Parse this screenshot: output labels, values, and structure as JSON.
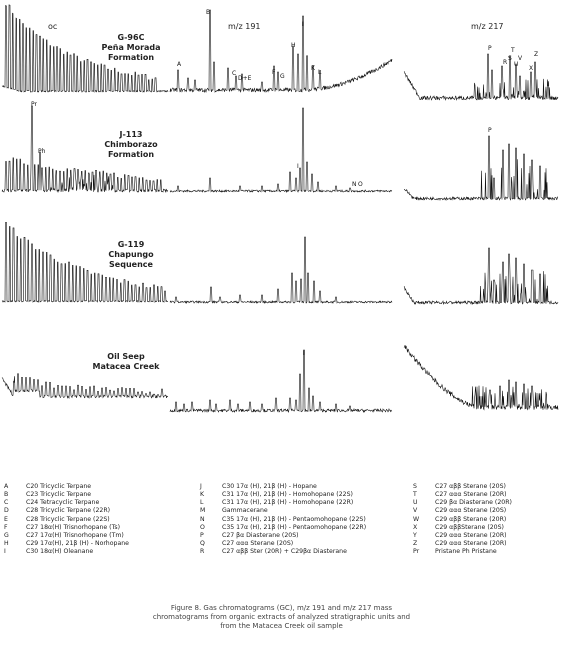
{
  "column_titles": {
    "oc": "oc",
    "m191": "m/z 191",
    "m217": "m/z 217"
  },
  "samples": [
    {
      "id": "G-96C",
      "lines": [
        "G-96C",
        "Peña Morada",
        "Formation"
      ]
    },
    {
      "id": "J-113",
      "lines": [
        "J-113",
        "Chimborazo",
        "Formation"
      ]
    },
    {
      "id": "G-119",
      "lines": [
        "G-119",
        "Chapungo",
        "Sequence"
      ]
    },
    {
      "id": "Oil Seep",
      "lines": [
        "Oil Seep",
        "Matacea Creek"
      ]
    }
  ],
  "peak_labels": {
    "row1_oc": [],
    "row1_m191": [
      "A",
      "B",
      "C",
      "D+E",
      "F",
      "G",
      "H",
      "I",
      "K",
      "L"
    ],
    "row1_m217": [
      "P",
      "R",
      "S",
      "T",
      "U",
      "V",
      "X",
      "Z"
    ],
    "row2_oc": [
      "Pr",
      "Ph"
    ],
    "row2_m191": [
      "I",
      "N",
      "O"
    ],
    "row2_m217": [
      "P"
    ],
    "row4_m191": [
      "I"
    ]
  },
  "legend": {
    "col1": [
      {
        "code": "A",
        "desc": "C20 Tricyclic Terpane"
      },
      {
        "code": "B",
        "desc": "C23 Tricyclic Terpane"
      },
      {
        "code": "C",
        "desc": "C24 Tetracyclic Terpane"
      },
      {
        "code": "D",
        "desc": "C28 Tricyclic Terpane (22R)"
      },
      {
        "code": "E",
        "desc": "C28 Tricyclic Terpane (22S)"
      },
      {
        "code": "F",
        "desc": "C27 18α(H) Trisnorhopane (Ts)"
      },
      {
        "code": "G",
        "desc": "C27 17α(H) Trisnorhopane (Tm)"
      },
      {
        "code": "H",
        "desc": "C29 17α(H), 21β (H) - Norhopane"
      },
      {
        "code": "I",
        "desc": "C30 18α(H) Oleanane"
      }
    ],
    "col2": [
      {
        "code": "J",
        "desc": "C30 17α (H), 21β (H) - Hopane"
      },
      {
        "code": "K",
        "desc": "C31 17α (H), 21β (H) - Homohopane (22S)"
      },
      {
        "code": "L",
        "desc": "C31 17α (H), 21β (H) - Homohopane (22R)"
      },
      {
        "code": "M",
        "desc": "Gammacerane"
      },
      {
        "code": "N",
        "desc": "C35 17α (H), 21β (H) - Pentaomohopane (22S)"
      },
      {
        "code": "O",
        "desc": "C35 17α (H), 21β (H) - Pentaomohopane (22R)"
      },
      {
        "code": "P",
        "desc": "C27 βα Diasterane (20S)"
      },
      {
        "code": "Q",
        "desc": "C27 ααα Sterane (20S)"
      },
      {
        "code": "R",
        "desc": "C27 αββ Ster (20R) + C29βα Diasterane"
      }
    ],
    "col3": [
      {
        "code": "S",
        "desc": "C27 αββ Sterane (20S)"
      },
      {
        "code": "T",
        "desc": "C27 ααα Sterane (20R)"
      },
      {
        "code": "U",
        "desc": "C29 βα Diasterane (20R)"
      },
      {
        "code": "V",
        "desc": "C29 ααα Sterane (20S)"
      },
      {
        "code": "W",
        "desc": "C29 αββ Sterane (20R)"
      },
      {
        "code": "X",
        "desc": "C29 αββSterane (20S)"
      },
      {
        "code": "Y",
        "desc": "C29 ααα Sterane (20R)"
      },
      {
        "code": "Z",
        "desc": "C29 ααα Sterane (20R)"
      },
      {
        "code": "Pr",
        "desc": "Pristane Ph Pristane"
      }
    ]
  },
  "caption": [
    "Figure 8. Gas chromatograms (GC), m/z 191 and m/z 217 mass",
    "chromatograms from organic extracts of analyzed stratigraphic units and",
    "from the Matacea Creek oil sample"
  ]
}
